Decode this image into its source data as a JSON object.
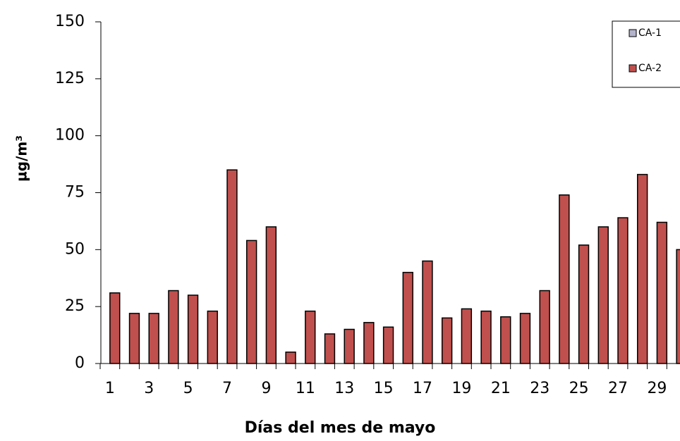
{
  "chart_data": {
    "type": "bar",
    "ylabel": "µg/m³",
    "xlabel": "Días del mes de mayo",
    "categories": [
      "1",
      null,
      "3",
      null,
      "5",
      null,
      "7",
      null,
      "9",
      null,
      "11",
      null,
      "13",
      null,
      "15",
      null,
      "17",
      null,
      "19",
      null,
      "21",
      null,
      "23",
      null,
      "25",
      null,
      "27",
      null,
      "29",
      null
    ],
    "series": [
      {
        "name": "CA-1",
        "color": "#b4b4cc",
        "values": [
          null,
          null,
          null,
          null,
          null,
          null,
          null,
          null,
          null,
          null,
          null,
          null,
          null,
          null,
          null,
          null,
          null,
          null,
          null,
          null,
          null,
          null,
          null,
          null,
          null,
          null,
          null,
          null,
          null,
          null
        ]
      },
      {
        "name": "CA-2",
        "color": "#c0504d",
        "values": [
          31,
          22,
          22,
          32,
          30,
          23,
          85,
          54,
          60,
          5,
          23,
          13,
          15,
          18,
          16,
          40,
          45,
          20,
          24,
          23,
          20.5,
          22,
          32,
          74,
          52,
          60,
          64,
          83,
          62,
          50
        ]
      }
    ],
    "ylim": [
      0,
      150
    ],
    "yticks": [
      0,
      25,
      50,
      75,
      100,
      125,
      150
    ],
    "legend": "upper right"
  }
}
